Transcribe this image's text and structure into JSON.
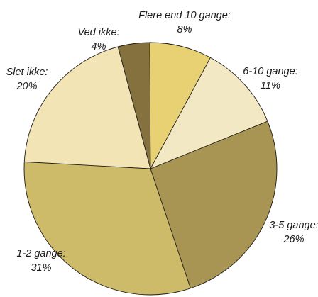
{
  "chart_data": {
    "type": "pie",
    "title": "",
    "slices": [
      {
        "name": "Flere end 10 gange:",
        "value": 8,
        "label": "8%",
        "color": "#e8d173"
      },
      {
        "name": "6-10 gange:",
        "value": 11,
        "label": "11%",
        "color": "#f3e8c4"
      },
      {
        "name": "3-5 gange:",
        "value": 26,
        "label": "26%",
        "color": "#a89553"
      },
      {
        "name": "1-2 gange:",
        "value": 31,
        "label": "31%",
        "color": "#cdbb6a"
      },
      {
        "name": "Slet ikke:",
        "value": 20,
        "label": "20%",
        "color": "#f2e4b4"
      },
      {
        "name": "Ved ikke:",
        "value": 4,
        "label": "4%",
        "color": "#85713e"
      }
    ]
  }
}
